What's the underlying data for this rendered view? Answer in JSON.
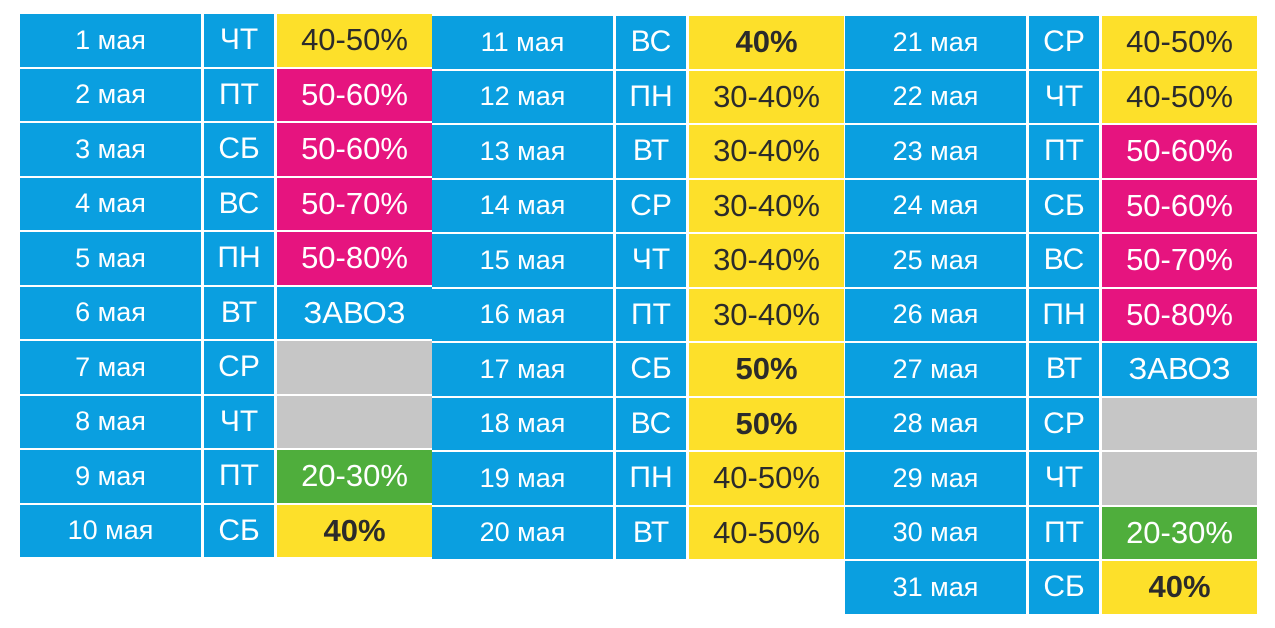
{
  "colors": {
    "blue": "#0a9fe0",
    "yellow": "#fde02a",
    "pink": "#e6147f",
    "gray": "#c6c6c6",
    "green": "#4fae3c"
  },
  "columns": [
    {
      "rows": [
        {
          "date": "1 мая",
          "dow": "ЧТ",
          "value": "40-50%",
          "color": "yellow",
          "bold": false
        },
        {
          "date": "2 мая",
          "dow": "ПТ",
          "value": "50-60%",
          "color": "pink",
          "bold": false
        },
        {
          "date": "3 мая",
          "dow": "СБ",
          "value": "50-60%",
          "color": "pink",
          "bold": false
        },
        {
          "date": "4 мая",
          "dow": "ВС",
          "value": "50-70%",
          "color": "pink",
          "bold": false
        },
        {
          "date": "5 мая",
          "dow": "ПН",
          "value": "50-80%",
          "color": "pink",
          "bold": false
        },
        {
          "date": "6 мая",
          "dow": "ВТ",
          "value": "ЗАВОЗ",
          "color": "blue",
          "bold": false
        },
        {
          "date": "7 мая",
          "dow": "СР",
          "value": "",
          "color": "gray",
          "bold": false
        },
        {
          "date": "8 мая",
          "dow": "ЧТ",
          "value": "",
          "color": "gray",
          "bold": false
        },
        {
          "date": "9 мая",
          "dow": "ПТ",
          "value": "20-30%",
          "color": "green",
          "bold": false
        },
        {
          "date": "10 мая",
          "dow": "СБ",
          "value": "40%",
          "color": "yellow",
          "bold": true
        }
      ]
    },
    {
      "rows": [
        {
          "date": "11 мая",
          "dow": "ВС",
          "value": "40%",
          "color": "yellow",
          "bold": true
        },
        {
          "date": "12 мая",
          "dow": "ПН",
          "value": "30-40%",
          "color": "yellow",
          "bold": false
        },
        {
          "date": "13 мая",
          "dow": "ВТ",
          "value": "30-40%",
          "color": "yellow",
          "bold": false
        },
        {
          "date": "14 мая",
          "dow": "СР",
          "value": "30-40%",
          "color": "yellow",
          "bold": false
        },
        {
          "date": "15 мая",
          "dow": "ЧТ",
          "value": "30-40%",
          "color": "yellow",
          "bold": false
        },
        {
          "date": "16 мая",
          "dow": "ПТ",
          "value": "30-40%",
          "color": "yellow",
          "bold": false
        },
        {
          "date": "17 мая",
          "dow": "СБ",
          "value": "50%",
          "color": "yellow",
          "bold": true
        },
        {
          "date": "18 мая",
          "dow": "ВС",
          "value": "50%",
          "color": "yellow",
          "bold": true
        },
        {
          "date": "19 мая",
          "dow": "ПН",
          "value": "40-50%",
          "color": "yellow",
          "bold": false
        },
        {
          "date": "20 мая",
          "dow": "ВТ",
          "value": "40-50%",
          "color": "yellow",
          "bold": false
        }
      ]
    },
    {
      "rows": [
        {
          "date": "21 мая",
          "dow": "СР",
          "value": "40-50%",
          "color": "yellow",
          "bold": false
        },
        {
          "date": "22 мая",
          "dow": "ЧТ",
          "value": "40-50%",
          "color": "yellow",
          "bold": false
        },
        {
          "date": "23 мая",
          "dow": "ПТ",
          "value": "50-60%",
          "color": "pink",
          "bold": false
        },
        {
          "date": "24 мая",
          "dow": "СБ",
          "value": "50-60%",
          "color": "pink",
          "bold": false
        },
        {
          "date": "25 мая",
          "dow": "ВС",
          "value": "50-70%",
          "color": "pink",
          "bold": false
        },
        {
          "date": "26 мая",
          "dow": "ПН",
          "value": "50-80%",
          "color": "pink",
          "bold": false
        },
        {
          "date": "27 мая",
          "dow": "ВТ",
          "value": "ЗАВОЗ",
          "color": "blue",
          "bold": false
        },
        {
          "date": "28 мая",
          "dow": "СР",
          "value": "",
          "color": "gray",
          "bold": false
        },
        {
          "date": "29 мая",
          "dow": "ЧТ",
          "value": "",
          "color": "gray",
          "bold": false
        },
        {
          "date": "30 мая",
          "dow": "ПТ",
          "value": "20-30%",
          "color": "green",
          "bold": false
        },
        {
          "date": "31 мая",
          "dow": "СБ",
          "value": "40%",
          "color": "yellow",
          "bold": true
        }
      ]
    }
  ]
}
